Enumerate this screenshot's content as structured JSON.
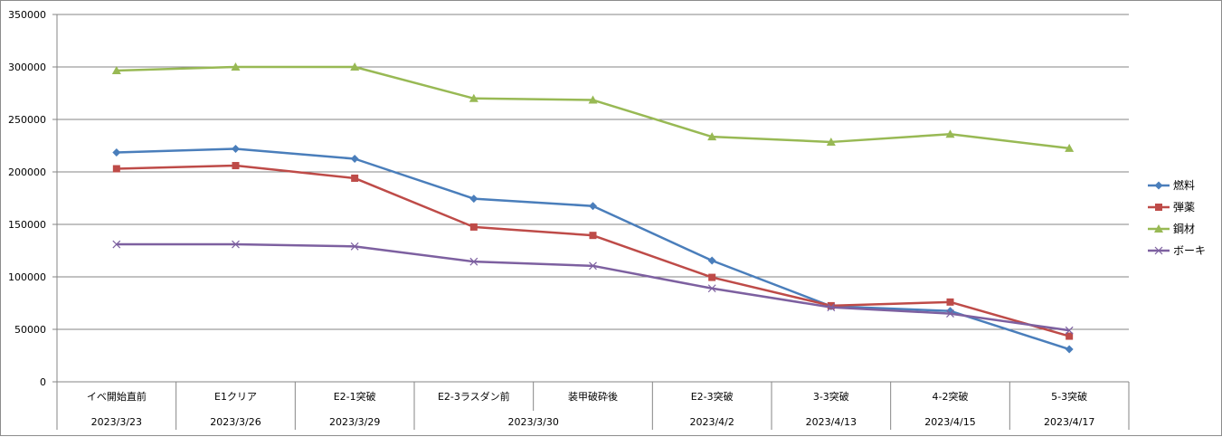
{
  "chart_data": {
    "type": "line",
    "title": "",
    "xlabel": "",
    "ylabel": "",
    "ylim": [
      0,
      350000
    ],
    "yticks": [
      0,
      50000,
      100000,
      150000,
      200000,
      250000,
      300000,
      350000
    ],
    "ytick_labels": [
      "0",
      "50000",
      "100000",
      "150000",
      "200000",
      "250000",
      "300000",
      "350000"
    ],
    "grid": true,
    "legend_position": "right",
    "categories": [
      "イベ開始直前",
      "E1クリア",
      "E2-1突破",
      "E2-3ラスダン前",
      "装甲破砕後",
      "E2-3突破",
      "3-3突破",
      "4-2突破",
      "5-3突破"
    ],
    "date_groups": [
      {
        "label": "2023/3/23",
        "count": 1
      },
      {
        "label": "2023/3/26",
        "count": 1
      },
      {
        "label": "2023/3/29",
        "count": 1
      },
      {
        "label": "2023/3/30",
        "count": 2
      },
      {
        "label": "2023/4/2",
        "count": 1
      },
      {
        "label": "2023/4/13",
        "count": 1
      },
      {
        "label": "2023/4/15",
        "count": 1
      },
      {
        "label": "2023/4/17",
        "count": 1
      }
    ],
    "series": [
      {
        "name": "燃料",
        "color": "#4a7ebb",
        "marker": "diamond",
        "values": [
          218500,
          222000,
          212500,
          174500,
          167500,
          115500,
          72000,
          67500,
          31000
        ]
      },
      {
        "name": "弾薬",
        "color": "#be4b48",
        "marker": "square",
        "values": [
          203000,
          206000,
          194000,
          147500,
          139500,
          99500,
          72500,
          76000,
          43500
        ]
      },
      {
        "name": "鋼材",
        "color": "#98b954",
        "marker": "triangle",
        "values": [
          296500,
          300000,
          300000,
          270000,
          268500,
          233500,
          228500,
          236000,
          222500
        ]
      },
      {
        "name": "ボーキ",
        "color": "#7d60a0",
        "marker": "x",
        "values": [
          131000,
          131000,
          129000,
          114500,
          110500,
          89000,
          71000,
          65000,
          49000
        ]
      }
    ]
  }
}
